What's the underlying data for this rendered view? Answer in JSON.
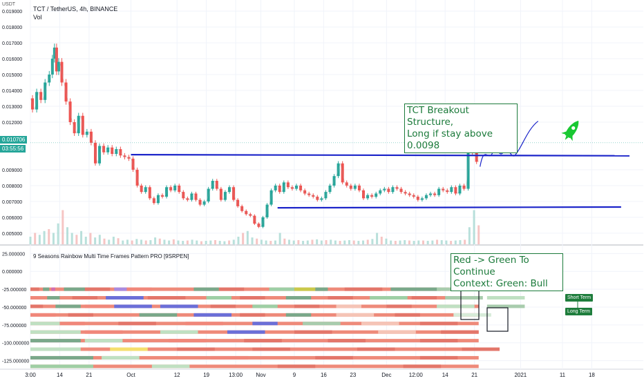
{
  "header": {
    "symbol_line": "TCT / TetherUS, 4h, BINANCE",
    "volume_label": "Vol",
    "currency": "USDT",
    "indicator_name": "9 Seasons Rainbow Multi Time Frames Pattern PRO [9SRPEN]"
  },
  "price_badges": {
    "last_price": "0.010706",
    "countdown": "03:55:56"
  },
  "annotations": {
    "breakout_line1": "TCT Breakout Structure,",
    "breakout_line2": "Long if stay above 0.0098",
    "continue_line1": "Red -> Green  To Continue",
    "continue_line2": "Context: Green: Bull",
    "short_term": "Short Term",
    "long_term": "Long Term"
  },
  "colors": {
    "up": "#26a69a",
    "down": "#ef5350",
    "trendline": "#1a23c9",
    "annotation": "#1b7a3a",
    "rocket": "#19c832"
  },
  "chart_data": [
    {
      "type": "line",
      "title": "TCT / TetherUS, 4h, BINANCE",
      "ylabel": "USDT",
      "ylim": [
        0.0043,
        0.0197
      ],
      "y_ticks": [
        "0.019000",
        "0.018000",
        "0.017000",
        "0.016000",
        "0.015000",
        "0.014000",
        "0.013000",
        "0.012000",
        "0.009000",
        "0.008000",
        "0.007000",
        "0.006000",
        "0.005000"
      ],
      "x_ticks": [
        "3:00",
        "14",
        "21",
        "Oct",
        "12",
        "19",
        "13:00",
        "Nov",
        "9",
        "16",
        "23",
        "Dec",
        "12:00",
        "14",
        "21",
        "2021",
        "11",
        "18"
      ],
      "x_tick_day": [
        7,
        14,
        21,
        31,
        42,
        49,
        56,
        62,
        70,
        77,
        84,
        92,
        99,
        106,
        113,
        124,
        134,
        141
      ],
      "series": [
        {
          "values_day": [
            7,
            8,
            9,
            10,
            11,
            12,
            12.5,
            13,
            13.5,
            14,
            15,
            16,
            17,
            18,
            19,
            20,
            21,
            22,
            23,
            24,
            25,
            26,
            27,
            28,
            29,
            30,
            31,
            32,
            33,
            34,
            35,
            36,
            37,
            38,
            39,
            40,
            41,
            42,
            43,
            44,
            45,
            46,
            47,
            48,
            49,
            50,
            51,
            52,
            53,
            54,
            55,
            56,
            57,
            58,
            59,
            60,
            61,
            62,
            63,
            64,
            65,
            66,
            67,
            68,
            69,
            70,
            71,
            72,
            73,
            74,
            75,
            76,
            77,
            78,
            79,
            80,
            81,
            82,
            83,
            84,
            85,
            86,
            87,
            88,
            89,
            90,
            91,
            92,
            93,
            94,
            95,
            96,
            97,
            98,
            99,
            100,
            101,
            102,
            103,
            104,
            105,
            106,
            107,
            108,
            109,
            110,
            111,
            112,
            113,
            114
          ],
          "values": [
            0.0135,
            0.0128,
            0.0139,
            0.0134,
            0.0145,
            0.015,
            0.016,
            0.0167,
            0.0152,
            0.0158,
            0.0145,
            0.0133,
            0.012,
            0.0113,
            0.0124,
            0.0112,
            0.0114,
            0.0107,
            0.0094,
            0.0105,
            0.0101,
            0.0104,
            0.01,
            0.0103,
            0.0099,
            0.0098,
            0.0097,
            0.009,
            0.008,
            0.0076,
            0.0079,
            0.0072,
            0.0069,
            0.0074,
            0.0073,
            0.0079,
            0.0077,
            0.008,
            0.0076,
            0.0072,
            0.0071,
            0.0075,
            0.0071,
            0.0068,
            0.007,
            0.0078,
            0.0083,
            0.0078,
            0.0071,
            0.0076,
            0.0079,
            0.0071,
            0.0067,
            0.0064,
            0.0062,
            0.0061,
            0.0056,
            0.0054,
            0.006,
            0.0068,
            0.0077,
            0.008,
            0.0076,
            0.0082,
            0.0079,
            0.0078,
            0.008,
            0.0077,
            0.0075,
            0.0074,
            0.0073,
            0.0071,
            0.0072,
            0.0076,
            0.008,
            0.0086,
            0.0094,
            0.0082,
            0.008,
            0.0078,
            0.008,
            0.0077,
            0.0072,
            0.0074,
            0.0073,
            0.0075,
            0.0077,
            0.0078,
            0.0076,
            0.0079,
            0.0078,
            0.0076,
            0.0075,
            0.0074,
            0.0073,
            0.0071,
            0.0072,
            0.0074,
            0.0075,
            0.0074,
            0.0078,
            0.0077,
            0.0076,
            0.0079,
            0.0075,
            0.008,
            0.0078,
            0.0107,
            0.0101,
            0.0095
          ]
        },
        {
          "name": "",
          "type": "trendline",
          "points_day": [
            31,
            150
          ],
          "values": [
            0.00995,
            0.00988
          ]
        },
        {
          "name": "",
          "type": "trendline",
          "points_day": [
            66,
            148
          ],
          "values": [
            0.0066,
            0.00665
          ]
        }
      ]
    },
    {
      "type": "bar",
      "title": "Vol",
      "values": [
        0.2,
        0.3,
        0.25,
        0.35,
        0.4,
        0.3,
        0.55,
        0.9,
        0.45,
        0.3,
        0.25,
        0.35,
        0.2,
        0.3,
        0.18,
        0.25,
        0.15,
        0.12,
        0.2,
        0.16,
        0.1,
        0.12,
        0.1,
        0.14,
        0.12,
        0.1,
        0.11,
        0.18,
        0.15,
        0.12,
        0.1,
        0.13,
        0.1,
        0.09,
        0.1,
        0.12,
        0.1,
        0.08,
        0.09,
        0.1,
        0.11,
        0.09,
        0.08,
        0.1,
        0.12,
        0.2,
        0.3,
        0.35,
        0.18,
        0.15,
        0.12,
        0.1,
        0.09,
        0.1,
        0.3,
        0.15,
        0.12,
        0.1,
        0.11,
        0.09,
        0.1,
        0.12,
        0.13,
        0.1,
        0.11,
        0.12,
        0.1,
        0.09,
        0.1,
        0.11,
        0.1,
        0.09,
        0.1,
        0.12,
        0.14,
        0.3,
        0.2,
        0.15,
        0.1,
        0.09,
        0.1,
        0.11,
        0.1,
        0.09,
        0.1,
        0.1,
        0.09,
        0.1,
        0.12,
        0.11,
        0.1,
        0.09,
        0.1,
        0.11,
        0.12,
        0.45,
        0.9,
        0.5
      ]
    },
    {
      "type": "heatmap",
      "title": "9 Seasons Rainbow Multi Time Frames Pattern PRO [9SRPEN]",
      "ylim": [
        -137,
        35
      ],
      "y_ticks": [
        "25.000000",
        "0.000000",
        "-25.000000",
        "-50.000000",
        "-75.000000",
        "-100.000000",
        "-125.000000"
      ],
      "rows": [
        {
          "y": -25,
          "segments": [
            [
              7,
              0.7,
              "#e3766a"
            ],
            [
              10,
              0.5,
              "#7aa88a"
            ],
            [
              12,
              0.3,
              "#d26eb2"
            ],
            [
              15,
              2,
              "#7aa88a"
            ],
            [
              20,
              2,
              "#e3766a"
            ],
            [
              27,
              1,
              "#a98be0"
            ],
            [
              30,
              2,
              "#f0877a"
            ],
            [
              46,
              2,
              "#7aa88a"
            ],
            [
              52,
              2,
              "#e3766a"
            ],
            [
              64,
              2,
              "#9ecfa5"
            ],
            [
              70,
              2.5,
              "#c9c94a"
            ],
            [
              75,
              1,
              "#7aa88a"
            ],
            [
              82,
              3,
              "#e3766a"
            ],
            [
              93,
              4,
              "#7aa88a"
            ],
            [
              104,
              2,
              "#a8ccad"
            ],
            [
              112,
              6,
              "#bfe0c2"
            ]
          ]
        },
        {
          "y": -37,
          "segments": [
            [
              7,
              0.8,
              "#f0877a"
            ],
            [
              11,
              1,
              "#7aa88a"
            ],
            [
              17,
              2,
              "#e3766a"
            ],
            [
              25,
              3,
              "#6b6fd8"
            ],
            [
              35,
              3,
              "#e3766a"
            ],
            [
              49,
              2,
              "#9ecfa5"
            ],
            [
              57,
              2,
              "#e3766a"
            ],
            [
              68,
              2,
              "#7aa88a"
            ],
            [
              78,
              2,
              "#e3766a"
            ],
            [
              88,
              3,
              "#9ecfa5"
            ],
            [
              98,
              2,
              "#e3766a"
            ],
            [
              106,
              3,
              "#a8ccad"
            ],
            [
              116,
              3,
              "#bfe0c2"
            ]
          ]
        },
        {
          "y": -49,
          "segments": [
            [
              7,
              1,
              "#e3766a"
            ],
            [
              13,
              2,
              "#7aa88a"
            ],
            [
              20,
              2,
              "#f0877a"
            ],
            [
              27,
              3,
              "#6b6fd8"
            ],
            [
              38,
              3,
              "#6b6fd8"
            ],
            [
              50,
              2,
              "#e3766a"
            ],
            [
              60,
              2,
              "#9ecfa5"
            ],
            [
              70,
              2,
              "#e3766a"
            ],
            [
              80,
              2,
              "#f5c4b6"
            ],
            [
              92,
              2,
              "#e3766a"
            ],
            [
              104,
              3,
              "#bfe0c2"
            ],
            [
              116,
              3,
              "#a8ccad"
            ]
          ]
        },
        {
          "y": -61,
          "segments": [
            [
              7,
              2,
              "#f0877a"
            ],
            [
              16,
              2,
              "#e3766a"
            ],
            [
              33,
              3,
              "#7aa88a"
            ],
            [
              46,
              3,
              "#6b6fd8"
            ],
            [
              57,
              2,
              "#e3766a"
            ],
            [
              68,
              2,
              "#7aa88a"
            ],
            [
              80,
              3,
              "#f5c4b6"
            ],
            [
              94,
              2,
              "#e3766a"
            ],
            [
              108,
              3,
              "#d7ecd9"
            ]
          ]
        },
        {
          "y": -73,
          "segments": [
            [
              7,
              3,
              "#bfe0c2"
            ],
            [
              14,
              2,
              "#f0877a"
            ],
            [
              28,
              3,
              "#e3766a"
            ],
            [
              44,
              3,
              "#f0877a"
            ],
            [
              60,
              2,
              "#6b6fd8"
            ],
            [
              72,
              3,
              "#a8ccad"
            ],
            [
              86,
              3,
              "#f5c4b6"
            ],
            [
              100,
              3,
              "#e3766a"
            ]
          ]
        },
        {
          "y": -85,
          "segments": [
            [
              7,
              4,
              "#bfe0c2"
            ],
            [
              20,
              3,
              "#f0877a"
            ],
            [
              38,
              3,
              "#bfe0c2"
            ],
            [
              54,
              3,
              "#6b6fd8"
            ],
            [
              70,
              3,
              "#e3766a"
            ],
            [
              90,
              3,
              "#f5c4b6"
            ],
            [
              105,
              3,
              "#e3766a"
            ]
          ]
        },
        {
          "y": -97,
          "segments": [
            [
              7,
              4,
              "#7aa88a"
            ],
            [
              20,
              3,
              "#bfe0c2"
            ],
            [
              40,
              3,
              "#f0877a"
            ],
            [
              58,
              3,
              "#e3766a"
            ],
            [
              78,
              3,
              "#e3766a"
            ],
            [
              100,
              3,
              "#e3766a"
            ]
          ]
        },
        {
          "y": -109,
          "segments": [
            [
              7,
              4,
              "#bfe0c2"
            ],
            [
              26,
              3,
              "#f5e06e"
            ],
            [
              42,
              3,
              "#e3766a"
            ],
            [
              60,
              3,
              "#e3766a"
            ],
            [
              85,
              3,
              "#e3766a"
            ],
            [
              110,
              3,
              "#e3766a"
            ]
          ]
        },
        {
          "y": -121,
          "segments": [
            [
              7,
              5,
              "#7aa88a"
            ],
            [
              24,
              3,
              "#bfe0c2"
            ],
            [
              50,
              3,
              "#f0877a"
            ],
            [
              75,
              3,
              "#e3766a"
            ],
            [
              100,
              3,
              "#e3766a"
            ]
          ]
        },
        {
          "y": -133,
          "segments": [
            [
              7,
              5,
              "#9ecfa5"
            ],
            [
              36,
              3,
              "#bfe0c2"
            ],
            [
              66,
              3,
              "#e3766a"
            ],
            [
              96,
              3,
              "#e3766a"
            ]
          ]
        }
      ]
    }
  ]
}
